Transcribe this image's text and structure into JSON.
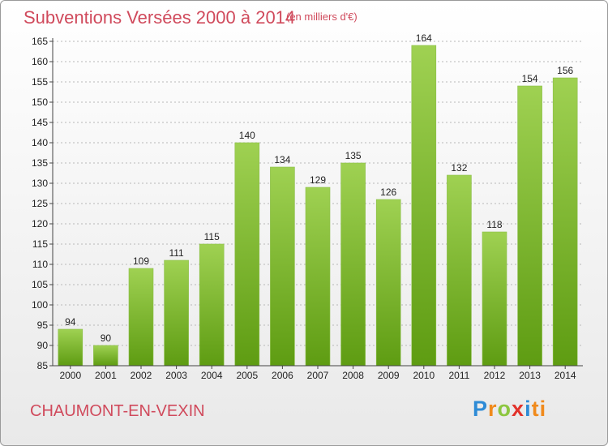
{
  "header": {
    "title": "Subventions Versées 2000 à 2014",
    "unit": "(en milliers d'€)"
  },
  "footer": {
    "place": "CHAUMONT-EN-VEXIN",
    "logo_letters": [
      "P",
      "r",
      "o",
      "x",
      "i",
      "ti"
    ]
  },
  "colors": {
    "title": "#d04a5c",
    "bar_light": "#9fd152",
    "bar_dark": "#5e9c12",
    "grid": "#b8b8b8"
  },
  "chart_data": {
    "type": "bar",
    "title": "Subventions Versées 2000 à 2014",
    "ylabel": "(en milliers d'€)",
    "xlabel": "",
    "categories": [
      "2000",
      "2001",
      "2002",
      "2003",
      "2004",
      "2005",
      "2006",
      "2007",
      "2008",
      "2009",
      "2010",
      "2011",
      "2012",
      "2013",
      "2014"
    ],
    "values": [
      94,
      90,
      109,
      111,
      115,
      140,
      134,
      129,
      135,
      126,
      164,
      132,
      118,
      154,
      156
    ],
    "ylim": [
      85,
      165
    ],
    "yticks": [
      85,
      90,
      95,
      100,
      105,
      110,
      115,
      120,
      125,
      130,
      135,
      140,
      145,
      150,
      155,
      160,
      165
    ],
    "grid": "horizontal dashed"
  }
}
